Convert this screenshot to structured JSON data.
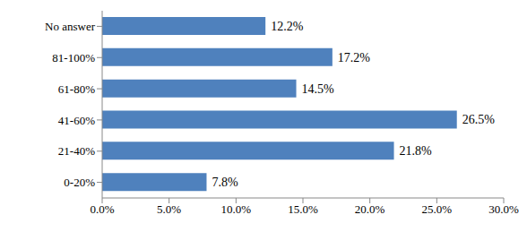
{
  "chart_data": {
    "type": "bar",
    "orientation": "horizontal",
    "categories": [
      "No answer",
      "81-100%",
      "61-80%",
      "41-60%",
      "21-40%",
      "0-20%"
    ],
    "values": [
      12.2,
      17.2,
      14.5,
      26.5,
      21.8,
      7.8
    ],
    "value_labels": [
      "12.2%",
      "17.2%",
      "14.5%",
      "26.5%",
      "21.8%",
      "7.8%"
    ],
    "data_labels": true,
    "color": "#4f81bd",
    "xlim": [
      0,
      30
    ],
    "xticks": [
      {
        "value": 0,
        "label": "0.0%"
      },
      {
        "value": 5,
        "label": "5.0%"
      },
      {
        "value": 10,
        "label": "10.0%"
      },
      {
        "value": 15,
        "label": "15.0%"
      },
      {
        "value": 20,
        "label": "20.0%"
      },
      {
        "value": 25,
        "label": "25.0%"
      },
      {
        "value": 30,
        "label": "30.0%"
      }
    ],
    "grid": false
  }
}
